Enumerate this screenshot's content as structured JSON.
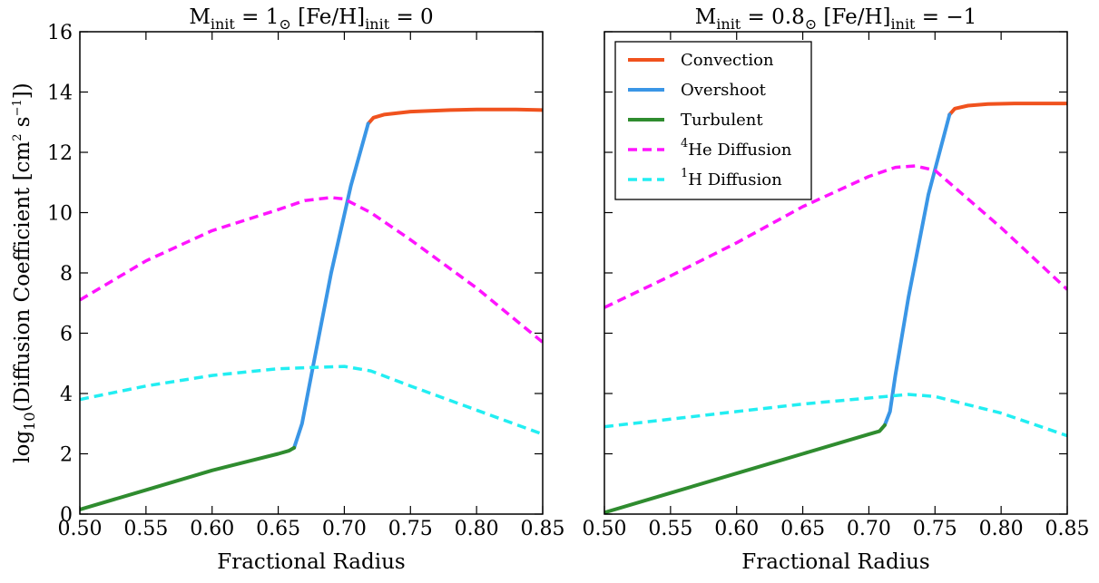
{
  "figure": {
    "ylabel": "log10(Diffusion Coefficient [cm2 s−1])",
    "xlabel": "Fractional Radius"
  },
  "legend": {
    "placement": "upper-left of right panel",
    "items": [
      {
        "label": "Convection",
        "color": "#F0521E",
        "style": "solid"
      },
      {
        "label": "Overshoot",
        "color": "#3A96E6",
        "style": "solid"
      },
      {
        "label": "Turbulent",
        "color": "#2F8C2F",
        "style": "solid"
      },
      {
        "label": "4He Diffusion",
        "color": "#FF14FF",
        "style": "dashed"
      },
      {
        "label": "1H Diffusion",
        "color": "#22EEF2",
        "style": "dashed"
      }
    ]
  },
  "chart_data": [
    {
      "type": "line",
      "title": "Minit = 1⊙ [Fe/H]init = 0",
      "xlabel": "Fractional Radius",
      "ylabel": "log10(Diffusion Coefficient [cm2 s−1])",
      "xlim": [
        0.5,
        0.85
      ],
      "ylim": [
        0,
        16
      ],
      "xticks": [
        "0.50",
        "0.55",
        "0.60",
        "0.65",
        "0.70",
        "0.75",
        "0.80",
        "0.85"
      ],
      "yticks": [
        "0",
        "2",
        "4",
        "6",
        "8",
        "10",
        "12",
        "14",
        "16"
      ],
      "grid": false,
      "series": [
        {
          "name": "Convection",
          "color": "#F0521E",
          "style": "solid",
          "x": [
            0.718,
            0.722,
            0.73,
            0.75,
            0.78,
            0.8,
            0.83,
            0.85
          ],
          "y": [
            12.95,
            13.15,
            13.25,
            13.35,
            13.4,
            13.42,
            13.42,
            13.4
          ]
        },
        {
          "name": "Overshoot",
          "color": "#3A96E6",
          "style": "solid",
          "x": [
            0.662,
            0.668,
            0.675,
            0.69,
            0.705,
            0.718
          ],
          "y": [
            2.2,
            3.0,
            4.6,
            8.0,
            10.9,
            12.95
          ]
        },
        {
          "name": "Turbulent",
          "color": "#2F8C2F",
          "style": "solid",
          "x": [
            0.5,
            0.55,
            0.6,
            0.65,
            0.658,
            0.662
          ],
          "y": [
            0.15,
            0.8,
            1.45,
            2.0,
            2.1,
            2.2
          ]
        },
        {
          "name": "4He Diffusion",
          "color": "#FF14FF",
          "style": "dashed",
          "x": [
            0.5,
            0.55,
            0.6,
            0.65,
            0.67,
            0.69,
            0.7,
            0.72,
            0.75,
            0.8,
            0.85
          ],
          "y": [
            7.1,
            8.4,
            9.4,
            10.1,
            10.4,
            10.5,
            10.45,
            10.0,
            9.1,
            7.5,
            5.7
          ]
        },
        {
          "name": "1H Diffusion",
          "color": "#22EEF2",
          "style": "dashed",
          "x": [
            0.5,
            0.55,
            0.6,
            0.65,
            0.68,
            0.7,
            0.72,
            0.75,
            0.8,
            0.85
          ],
          "y": [
            3.8,
            4.25,
            4.6,
            4.82,
            4.87,
            4.9,
            4.75,
            4.25,
            3.45,
            2.65
          ]
        }
      ]
    },
    {
      "type": "line",
      "title": "Minit = 0.8⊙ [Fe/H]init = −1",
      "xlabel": "Fractional Radius",
      "ylabel": "",
      "xlim": [
        0.5,
        0.85
      ],
      "ylim": [
        0,
        16
      ],
      "xticks": [
        "0.50",
        "0.55",
        "0.60",
        "0.65",
        "0.70",
        "0.75",
        "0.80",
        "0.85"
      ],
      "yticks": [],
      "grid": false,
      "series": [
        {
          "name": "Convection",
          "color": "#F0521E",
          "style": "solid",
          "x": [
            0.761,
            0.765,
            0.775,
            0.79,
            0.81,
            0.83,
            0.85
          ],
          "y": [
            13.25,
            13.45,
            13.55,
            13.6,
            13.62,
            13.62,
            13.62
          ]
        },
        {
          "name": "Overshoot",
          "color": "#3A96E6",
          "style": "solid",
          "x": [
            0.712,
            0.716,
            0.72,
            0.73,
            0.745,
            0.761
          ],
          "y": [
            2.95,
            3.4,
            4.6,
            7.2,
            10.6,
            13.25
          ]
        },
        {
          "name": "Turbulent",
          "color": "#2F8C2F",
          "style": "solid",
          "x": [
            0.5,
            0.55,
            0.6,
            0.65,
            0.7,
            0.708,
            0.712
          ],
          "y": [
            0.05,
            0.7,
            1.35,
            2.0,
            2.65,
            2.75,
            2.95
          ]
        },
        {
          "name": "4He Diffusion",
          "color": "#FF14FF",
          "style": "dashed",
          "x": [
            0.5,
            0.55,
            0.6,
            0.65,
            0.7,
            0.72,
            0.735,
            0.75,
            0.8,
            0.85
          ],
          "y": [
            6.85,
            7.9,
            9.0,
            10.2,
            11.2,
            11.5,
            11.55,
            11.4,
            9.5,
            7.45
          ]
        },
        {
          "name": "1H Diffusion",
          "color": "#22EEF2",
          "style": "dashed",
          "x": [
            0.5,
            0.55,
            0.6,
            0.65,
            0.7,
            0.73,
            0.75,
            0.8,
            0.85
          ],
          "y": [
            2.9,
            3.15,
            3.4,
            3.65,
            3.85,
            3.97,
            3.9,
            3.35,
            2.6
          ]
        }
      ]
    }
  ]
}
